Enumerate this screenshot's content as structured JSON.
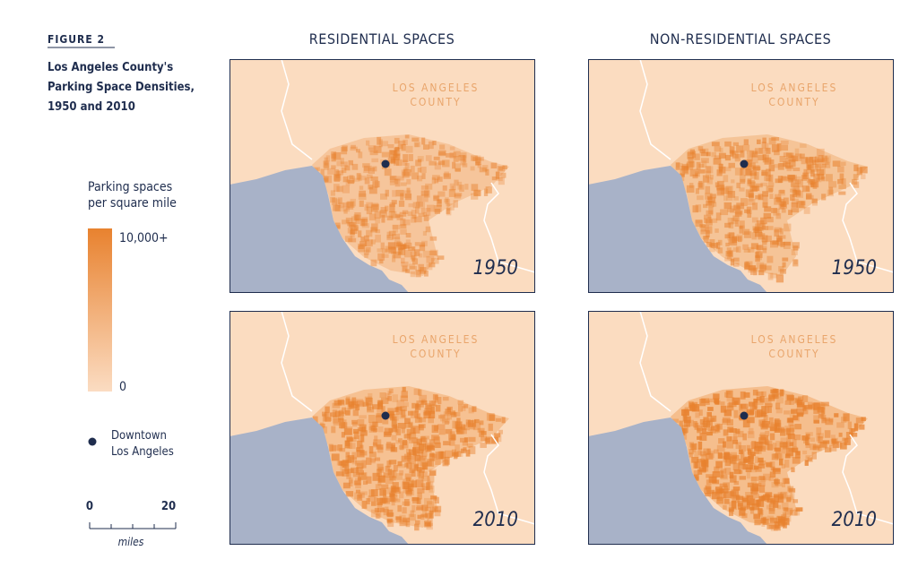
{
  "figure": {
    "label": "FIGURE 2",
    "title": [
      "Los Angeles County's",
      "Parking Space Densities,",
      "1950 and 2010"
    ]
  },
  "columns": [
    "RESIDENTIAL SPACES",
    "NON-RESIDENTIAL SPACES"
  ],
  "panels": [
    {
      "county_label": [
        "LOS ANGELES",
        "COUNTY"
      ],
      "year": "1950"
    },
    {
      "county_label": [
        "LOS ANGELES",
        "COUNTY"
      ],
      "year": "1950"
    },
    {
      "county_label": [
        "LOS ANGELES",
        "COUNTY"
      ],
      "year": "2010"
    },
    {
      "county_label": [
        "LOS ANGELES",
        "COUNTY"
      ],
      "year": "2010"
    }
  ],
  "legend": {
    "title": [
      "Parking spaces",
      "per square mile"
    ],
    "max_label": "10,000+",
    "min_label": "0",
    "marker_label": [
      "Downtown",
      "Los Angeles"
    ]
  },
  "scale": {
    "start": "0",
    "end": "20",
    "unit": "miles"
  }
}
